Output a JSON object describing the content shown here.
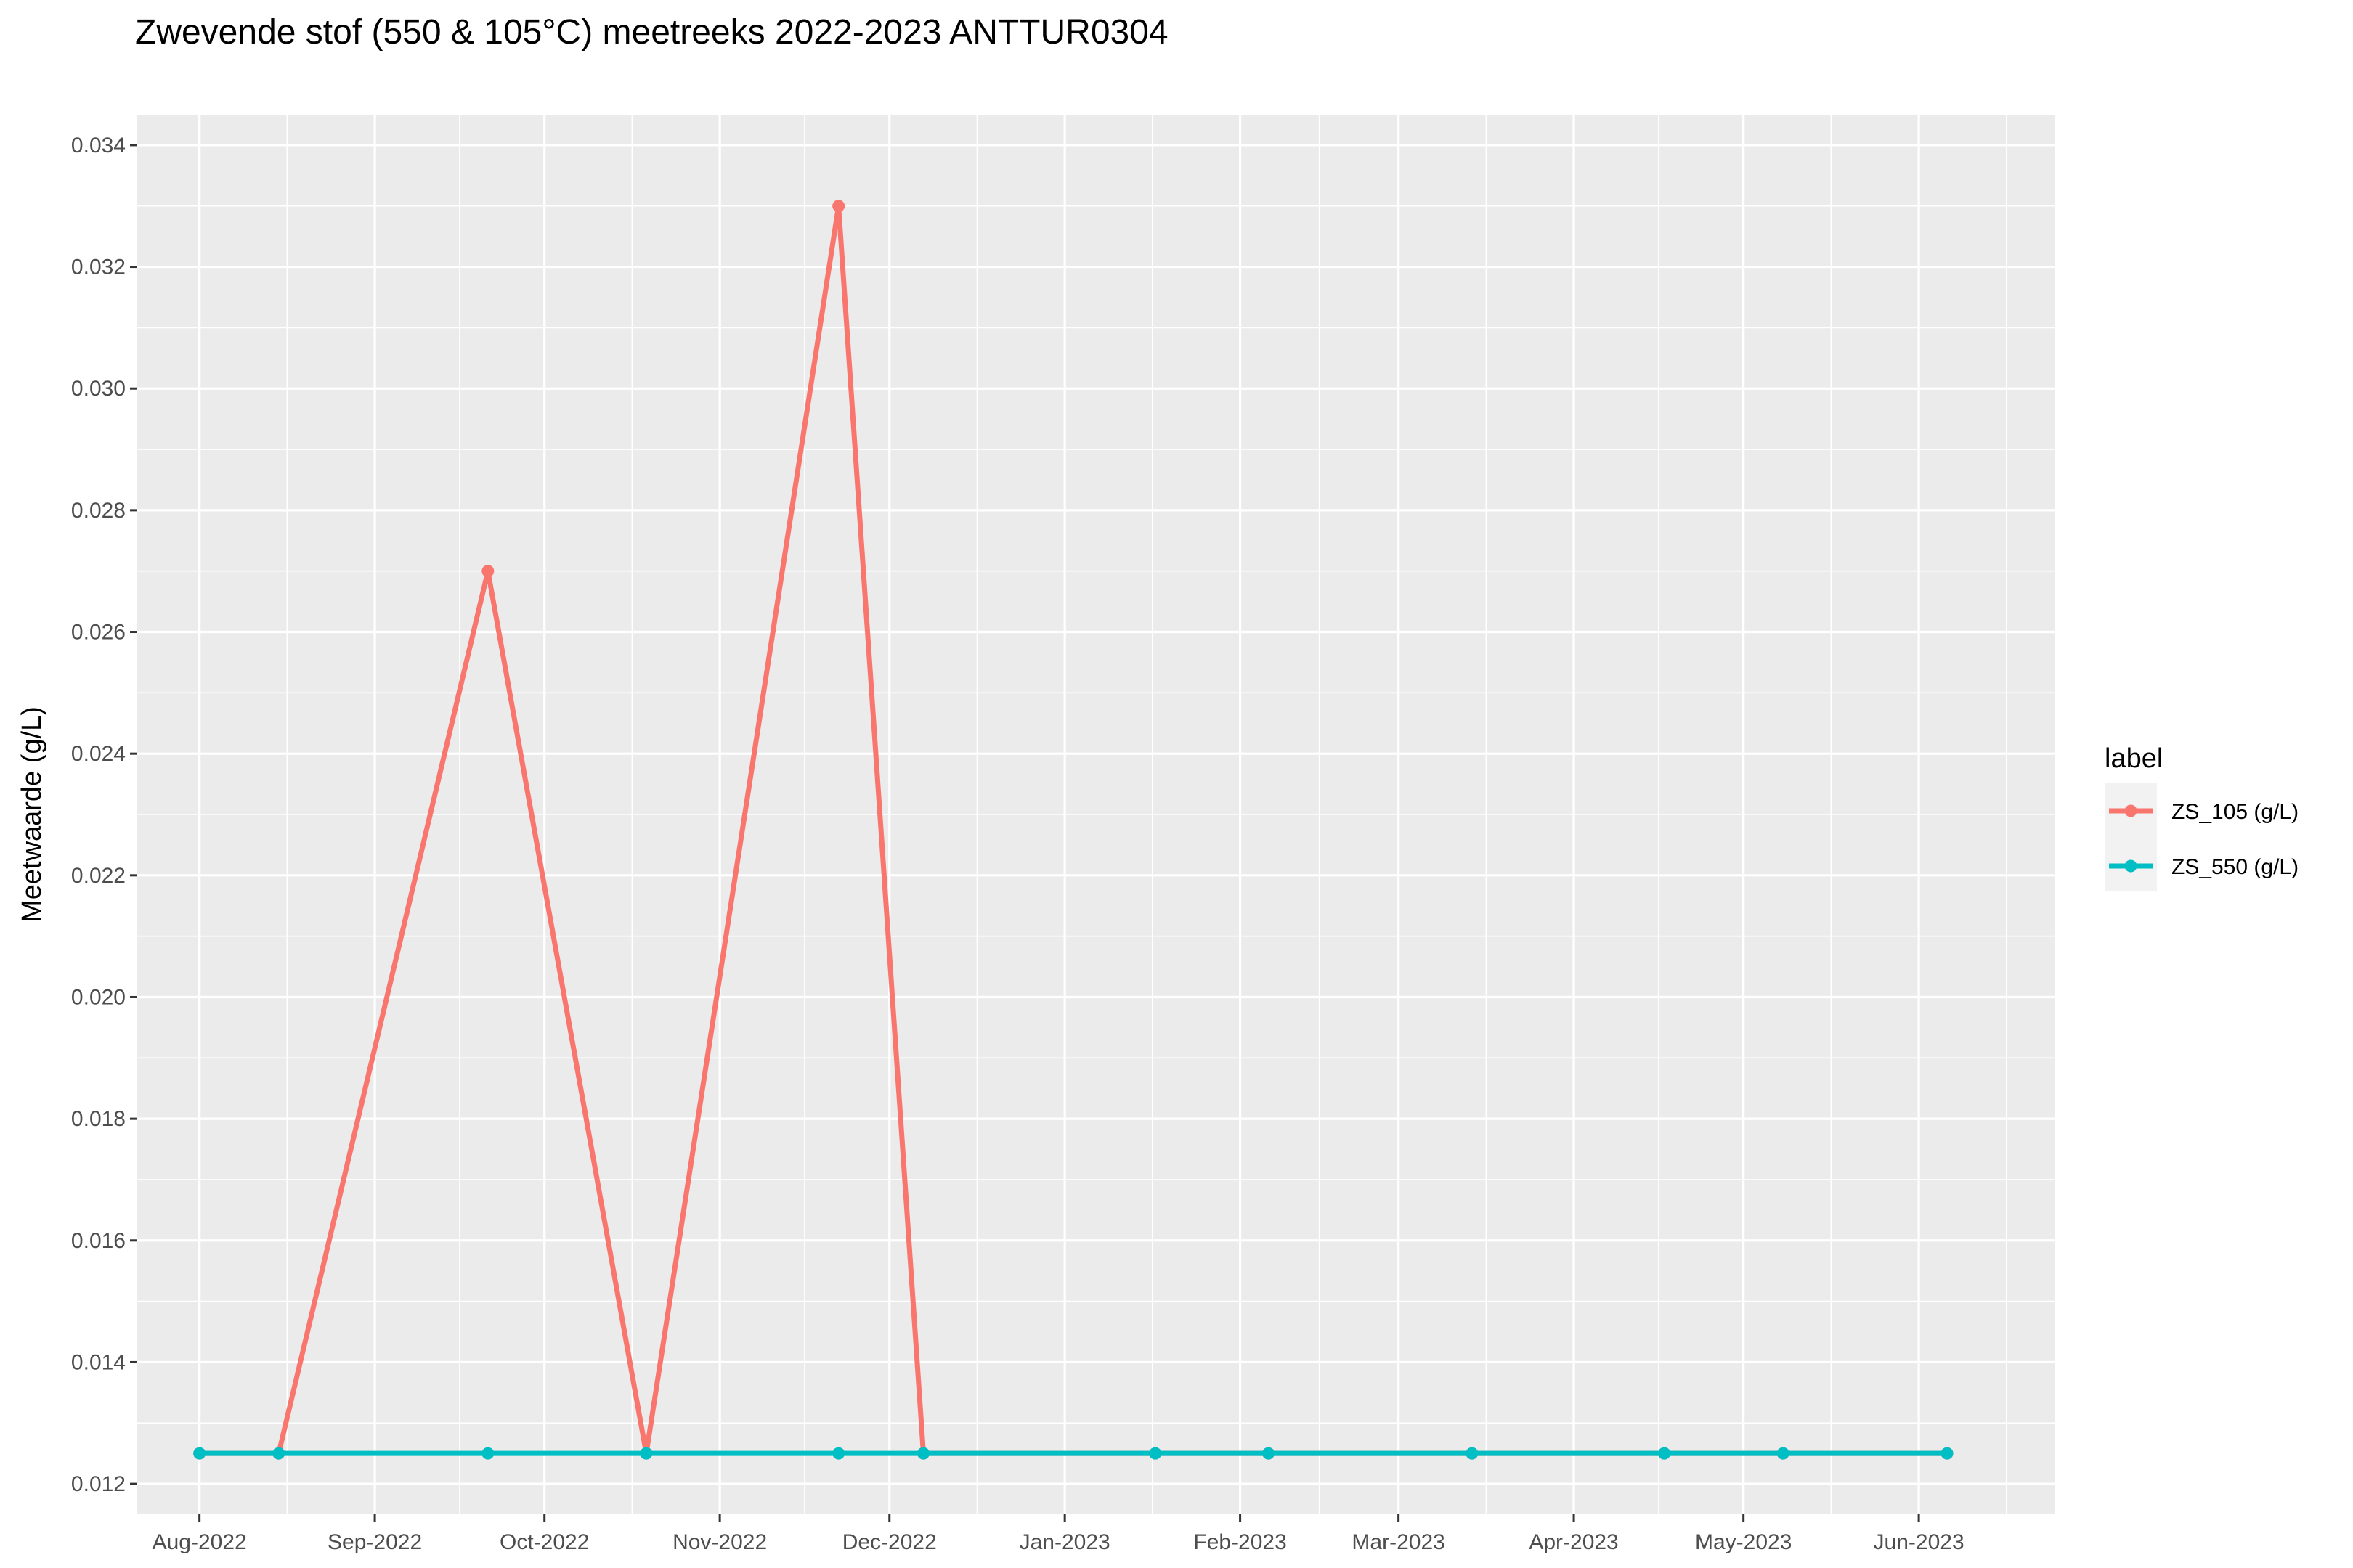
{
  "chart_data": {
    "type": "line",
    "title": "Zwevende stof (550 & 105°C) meetreeks 2022-2023 ANTTUR0304",
    "xlabel": "",
    "ylabel": "Meetwaarde (g/L)",
    "xlim": [
      "2022-07-21",
      "2023-06-25"
    ],
    "ylim": [
      0.0115,
      0.0345
    ],
    "x_ticks": [
      {
        "date": "2022-08-01",
        "label": "Aug-2022"
      },
      {
        "date": "2022-09-01",
        "label": "Sep-2022"
      },
      {
        "date": "2022-10-01",
        "label": "Oct-2022"
      },
      {
        "date": "2022-11-01",
        "label": "Nov-2022"
      },
      {
        "date": "2022-12-01",
        "label": "Dec-2022"
      },
      {
        "date": "2023-01-01",
        "label": "Jan-2023"
      },
      {
        "date": "2023-02-01",
        "label": "Feb-2023"
      },
      {
        "date": "2023-03-01",
        "label": "Mar-2023"
      },
      {
        "date": "2023-04-01",
        "label": "Apr-2023"
      },
      {
        "date": "2023-05-01",
        "label": "May-2023"
      },
      {
        "date": "2023-06-01",
        "label": "Jun-2023"
      }
    ],
    "y_ticks": [
      0.012,
      0.014,
      0.016,
      0.018,
      0.02,
      0.022,
      0.024,
      0.026,
      0.028,
      0.03,
      0.032,
      0.034
    ],
    "y_tick_labels": [
      "0.012",
      "0.014",
      "0.016",
      "0.018",
      "0.020",
      "0.022",
      "0.024",
      "0.026",
      "0.028",
      "0.030",
      "0.032",
      "0.034"
    ],
    "grid": true,
    "legend": {
      "title": "label",
      "position": "right"
    },
    "series": [
      {
        "name": "ZS_105 (g/L)",
        "color": "#F8766D",
        "points": [
          {
            "x": "2022-08-01",
            "y": 0.0125
          },
          {
            "x": "2022-08-15",
            "y": 0.0125
          },
          {
            "x": "2022-09-21",
            "y": 0.027
          },
          {
            "x": "2022-10-19",
            "y": 0.0125
          },
          {
            "x": "2022-11-22",
            "y": 0.033
          },
          {
            "x": "2022-12-07",
            "y": 0.0125
          },
          {
            "x": "2023-01-17",
            "y": 0.0125
          },
          {
            "x": "2023-02-06",
            "y": 0.0125
          },
          {
            "x": "2023-03-14",
            "y": 0.0125
          },
          {
            "x": "2023-04-17",
            "y": 0.0125
          },
          {
            "x": "2023-05-08",
            "y": 0.0125
          },
          {
            "x": "2023-06-06",
            "y": 0.0125
          }
        ]
      },
      {
        "name": "ZS_550 (g/L)",
        "color": "#00BFC4",
        "points": [
          {
            "x": "2022-08-01",
            "y": 0.0125
          },
          {
            "x": "2022-08-15",
            "y": 0.0125
          },
          {
            "x": "2022-09-21",
            "y": 0.0125
          },
          {
            "x": "2022-10-19",
            "y": 0.0125
          },
          {
            "x": "2022-11-22",
            "y": 0.0125
          },
          {
            "x": "2022-12-07",
            "y": 0.0125
          },
          {
            "x": "2023-01-17",
            "y": 0.0125
          },
          {
            "x": "2023-02-06",
            "y": 0.0125
          },
          {
            "x": "2023-03-14",
            "y": 0.0125
          },
          {
            "x": "2023-04-17",
            "y": 0.0125
          },
          {
            "x": "2023-05-08",
            "y": 0.0125
          },
          {
            "x": "2023-06-06",
            "y": 0.0125
          }
        ]
      }
    ]
  }
}
